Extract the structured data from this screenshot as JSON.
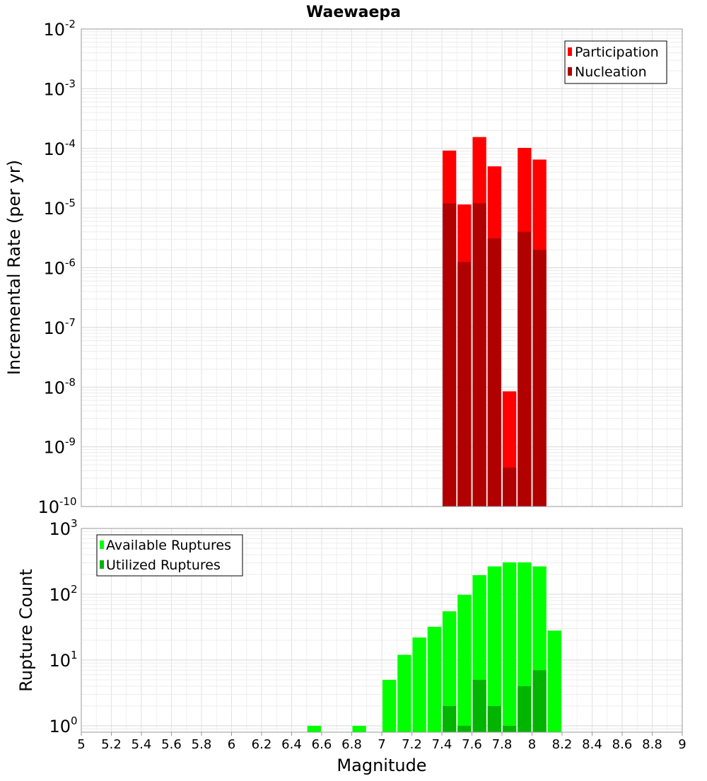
{
  "chart_data": {
    "type": "bar",
    "title": "Waewaepa",
    "xlabel": "Magnitude",
    "x_ticks": [
      "5",
      "5.2",
      "5.4",
      "5.6",
      "5.8",
      "6",
      "6.2",
      "6.4",
      "6.6",
      "6.8",
      "7",
      "7.2",
      "7.4",
      "7.6",
      "7.8",
      "8",
      "8.2",
      "8.4",
      "8.6",
      "8.8",
      "9"
    ],
    "xlim": [
      5,
      9
    ],
    "bin_width": 0.1,
    "panels": [
      {
        "name": "rate",
        "ylabel": "Incremental Rate (per yr)",
        "yscale": "log",
        "ylim": [
          1e-10,
          0.01
        ],
        "y_tick_exponents": [
          "-2",
          "-3",
          "-4",
          "-5",
          "-6",
          "-7",
          "-8",
          "-9",
          "-10"
        ],
        "y_tick_base": "10",
        "legend": {
          "position": "top-right",
          "entries": [
            "Participation",
            "Nucleation"
          ]
        },
        "x": [
          7.45,
          7.55,
          7.65,
          7.75,
          7.85,
          7.95,
          8.05
        ],
        "series": [
          {
            "name": "Participation",
            "color": "#ff0000",
            "values": [
              9.2e-05,
              1.15e-05,
              0.000155,
              5e-05,
              8.5e-09,
              0.000102,
              6.5e-05
            ]
          },
          {
            "name": "Nucleation",
            "color": "#b00000",
            "values": [
              1.2e-05,
              1.25e-06,
              1.2e-05,
              3.1e-06,
              4.5e-10,
              4e-06,
              2e-06
            ]
          }
        ]
      },
      {
        "name": "count",
        "ylabel": "Rupture Count",
        "yscale": "log",
        "ylim": [
          0.8,
          1000
        ],
        "y_tick_exponents": [
          "3",
          "2",
          "1",
          "0"
        ],
        "y_tick_base": "10",
        "legend": {
          "position": "top-left",
          "entries": [
            "Available Ruptures",
            "Utilized Ruptures"
          ]
        },
        "x_available": [
          6.55,
          6.85,
          7.05,
          7.15,
          7.25,
          7.35,
          7.45,
          7.55,
          7.65,
          7.75,
          7.85,
          7.95,
          8.05,
          8.15
        ],
        "x_utilized": [
          7.45,
          7.55,
          7.65,
          7.75,
          7.85,
          7.95,
          8.05
        ],
        "series": [
          {
            "name": "Available Ruptures",
            "color": "#00ff00",
            "values": [
              1,
              1,
              5,
              12,
              22,
              32,
              55,
              98,
              195,
              265,
              305,
              305,
              265,
              28
            ]
          },
          {
            "name": "Utilized Ruptures",
            "color": "#00b400",
            "values": [
              2,
              1,
              5,
              2,
              1,
              4,
              7
            ]
          }
        ]
      }
    ]
  }
}
